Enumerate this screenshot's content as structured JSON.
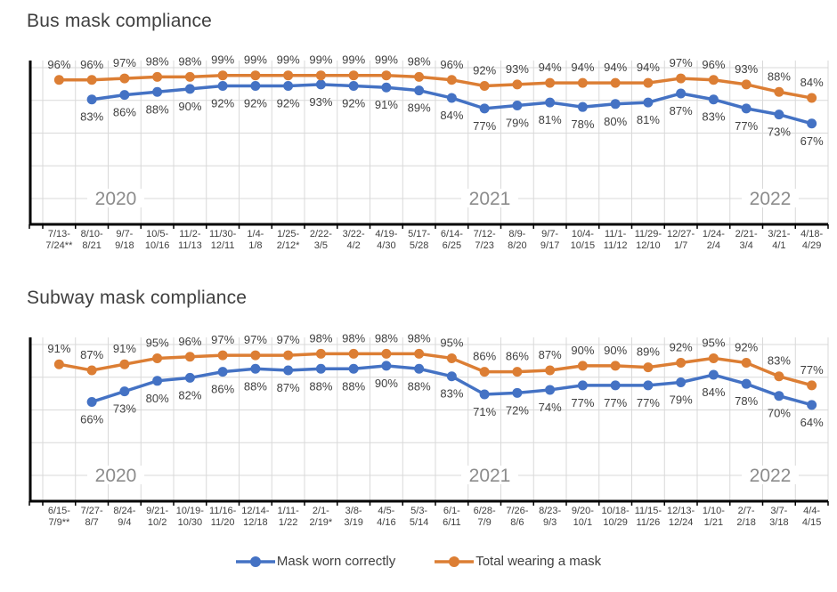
{
  "colors": {
    "worn_correctly": "#4472C4",
    "total_wearing": "#DC7E34",
    "data_label": "#404040",
    "axis_label": "#404040",
    "title": "#3F3F3F",
    "year_label": "#8C8C8C",
    "gridline": "#D9D9D9",
    "axis_line": "#000000",
    "background": "#FFFFFF"
  },
  "legend": {
    "items": [
      {
        "id": "worn_correctly",
        "label": "Mask worn correctly",
        "color": "#4472C4"
      },
      {
        "id": "total_wearing",
        "label": "Total wearing a mask",
        "color": "#DC7E34"
      }
    ]
  },
  "chart_data": [
    {
      "id": "bus",
      "type": "line",
      "title": "Bus mask compliance",
      "unit": "%",
      "ylim": [
        0,
        100
      ],
      "grid": true,
      "legend_position": "bottom",
      "year_annotations": [
        "2020",
        "2021",
        "2022"
      ],
      "categories": [
        "7/13-\n7/24**",
        "8/10-\n8/21",
        "9/7-\n9/18",
        "10/5-\n10/16",
        "11/2-\n11/13",
        "11/30-\n12/11",
        "1/4-\n1/8",
        "1/25-\n2/12*",
        "2/22-\n3/5",
        "3/22-\n4/2",
        "4/19-\n4/30",
        "5/17-\n5/28",
        "6/14-\n6/25",
        "7/12-\n7/23",
        "8/9-\n8/20",
        "9/7-\n9/17",
        "10/4-\n10/15",
        "11/1-\n11/12",
        "11/29-\n12/10",
        "12/27-\n1/7",
        "1/24-\n2/4",
        "2/21-\n3/4",
        "3/21-\n4/1",
        "4/18-\n4/29"
      ],
      "series": [
        {
          "name": "Mask worn correctly",
          "color": "#4472C4",
          "label_position": "below",
          "values": [
            null,
            83,
            86,
            88,
            90,
            92,
            92,
            92,
            93,
            92,
            91,
            89,
            84,
            77,
            79,
            81,
            78,
            80,
            81,
            87,
            83,
            77,
            73,
            67
          ]
        },
        {
          "name": "Total wearing a mask",
          "color": "#DC7E34",
          "label_position": "above",
          "values": [
            96,
            96,
            97,
            98,
            98,
            99,
            99,
            99,
            99,
            99,
            99,
            98,
            96,
            92,
            93,
            94,
            94,
            94,
            94,
            97,
            96,
            93,
            88,
            84
          ]
        }
      ]
    },
    {
      "id": "subway",
      "type": "line",
      "title": "Subway mask compliance",
      "unit": "%",
      "ylim": [
        0,
        100
      ],
      "grid": true,
      "legend_position": "bottom",
      "year_annotations": [
        "2020",
        "2021",
        "2022"
      ],
      "categories": [
        "6/15-\n7/9**",
        "7/27-\n8/7",
        "8/24-\n9/4",
        "9/21-\n10/2",
        "10/19-\n10/30",
        "11/16-\n11/20",
        "12/14-\n12/18",
        "1/11-\n1/22",
        "2/1-\n2/19*",
        "3/8-\n3/19",
        "4/5-\n4/16",
        "5/3-\n5/14",
        "6/1-\n6/11",
        "6/28-\n7/9",
        "7/26-\n8/6",
        "8/23-\n9/3",
        "9/20-\n10/1",
        "10/18-\n10/29",
        "11/15-\n11/26",
        "12/13-\n12/24",
        "1/10-\n1/21",
        "2/7-\n2/18",
        "3/7-\n3/18",
        "4/4-\n4/15"
      ],
      "series": [
        {
          "name": "Mask worn correctly",
          "color": "#4472C4",
          "label_position": "below",
          "values": [
            null,
            66,
            73,
            80,
            82,
            86,
            88,
            87,
            88,
            88,
            90,
            88,
            83,
            71,
            72,
            74,
            77,
            77,
            77,
            79,
            84,
            78,
            70,
            64
          ]
        },
        {
          "name": "Total wearing a mask",
          "color": "#DC7E34",
          "label_position": "above",
          "values": [
            91,
            87,
            91,
            95,
            96,
            97,
            97,
            97,
            98,
            98,
            98,
            98,
            95,
            86,
            86,
            87,
            90,
            90,
            89,
            92,
            95,
            92,
            83,
            77
          ]
        }
      ]
    }
  ]
}
